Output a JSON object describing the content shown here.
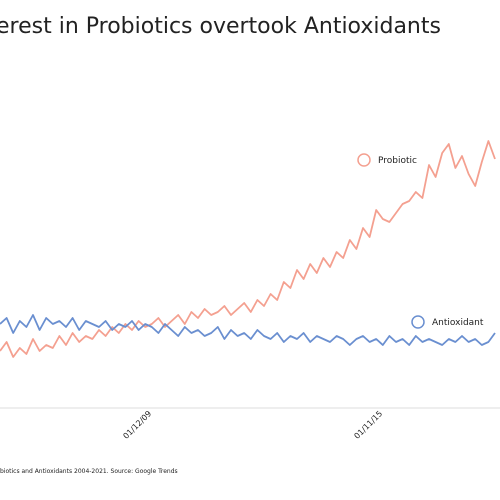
{
  "chart_data": {
    "type": "line",
    "title": "erest in Probiotics overtook Antioxidants",
    "source": "biotics and Antioxidants 2004-2021. Source: Google Trends",
    "categories": [
      null,
      null,
      null,
      null,
      null,
      null,
      null,
      null,
      null,
      null,
      null,
      null,
      null,
      null,
      null,
      null,
      null,
      null,
      null,
      null,
      null,
      null,
      null,
      "01/12/09",
      null,
      null,
      null,
      null,
      null,
      null,
      null,
      null,
      null,
      null,
      null,
      null,
      null,
      null,
      null,
      null,
      null,
      null,
      null,
      null,
      null,
      null,
      null,
      null,
      null,
      null,
      null,
      null,
      null,
      null,
      null,
      null,
      null,
      null,
      "01/11/15",
      null,
      null,
      null,
      null,
      null,
      null,
      null,
      null,
      null,
      null,
      null,
      null,
      null,
      null,
      null,
      null,
      null
    ],
    "ylim": [
      0,
      100
    ],
    "series": [
      {
        "name": "Probiotic",
        "color": "#f4a090",
        "values": [
          19,
          22,
          17,
          20,
          18,
          23,
          19,
          21,
          20,
          24,
          21,
          25,
          22,
          24,
          23,
          26,
          24,
          27,
          25,
          28,
          26,
          29,
          27,
          28,
          30,
          27,
          29,
          31,
          28,
          32,
          30,
          33,
          31,
          32,
          34,
          31,
          33,
          35,
          32,
          36,
          34,
          38,
          36,
          42,
          40,
          46,
          43,
          48,
          45,
          50,
          47,
          52,
          50,
          56,
          53,
          60,
          57,
          66,
          63,
          62,
          65,
          68,
          69,
          72,
          70,
          81,
          77,
          85,
          88,
          80,
          84,
          78,
          74,
          82,
          89,
          83
        ]
      },
      {
        "name": "Antioxidant",
        "color": "#6a8fd0",
        "values": [
          28,
          30,
          25,
          29,
          27,
          31,
          26,
          30,
          28,
          29,
          27,
          30,
          26,
          29,
          28,
          27,
          29,
          26,
          28,
          27,
          29,
          26,
          28,
          27,
          25,
          28,
          26,
          24,
          27,
          25,
          26,
          24,
          25,
          27,
          23,
          26,
          24,
          25,
          23,
          26,
          24,
          23,
          25,
          22,
          24,
          23,
          25,
          22,
          24,
          23,
          22,
          24,
          23,
          21,
          23,
          24,
          22,
          23,
          21,
          24,
          22,
          23,
          21,
          24,
          22,
          23,
          22,
          21,
          23,
          22,
          24,
          22,
          23,
          21,
          22,
          25
        ]
      }
    ]
  }
}
